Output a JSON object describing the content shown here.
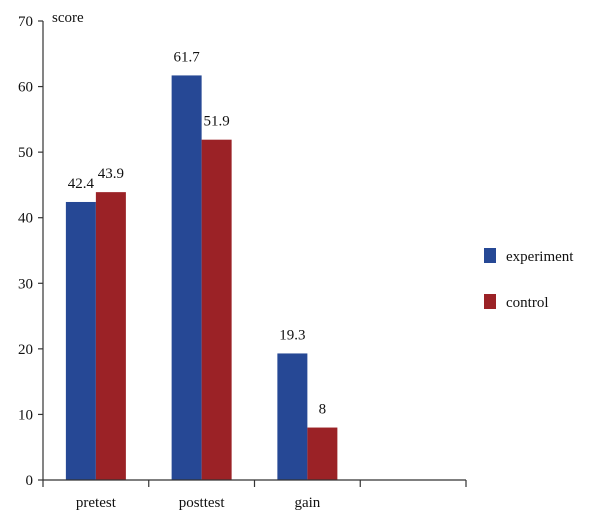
{
  "colors": {
    "experiment": "#264895",
    "control": "#9b2226",
    "axis": "#333333",
    "text": "#111111"
  },
  "chart_data": {
    "type": "bar",
    "title": "",
    "xlabel": "",
    "ylabel": "score",
    "ylim": [
      0,
      70
    ],
    "yticks": [
      "0",
      "10",
      "20",
      "30",
      "40",
      "50",
      "60",
      "70"
    ],
    "categories": [
      "pretest",
      "posttest",
      "gain",
      ""
    ],
    "grid": false,
    "legend_position": "right",
    "series": [
      {
        "name": "experiment",
        "values": [
          42.4,
          61.7,
          19.3,
          null
        ],
        "labels": [
          "42.4",
          "61.7",
          "19.3",
          ""
        ]
      },
      {
        "name": "control",
        "values": [
          43.9,
          51.9,
          8,
          null
        ],
        "labels": [
          "43.9",
          "51.9",
          "8",
          ""
        ]
      }
    ]
  }
}
